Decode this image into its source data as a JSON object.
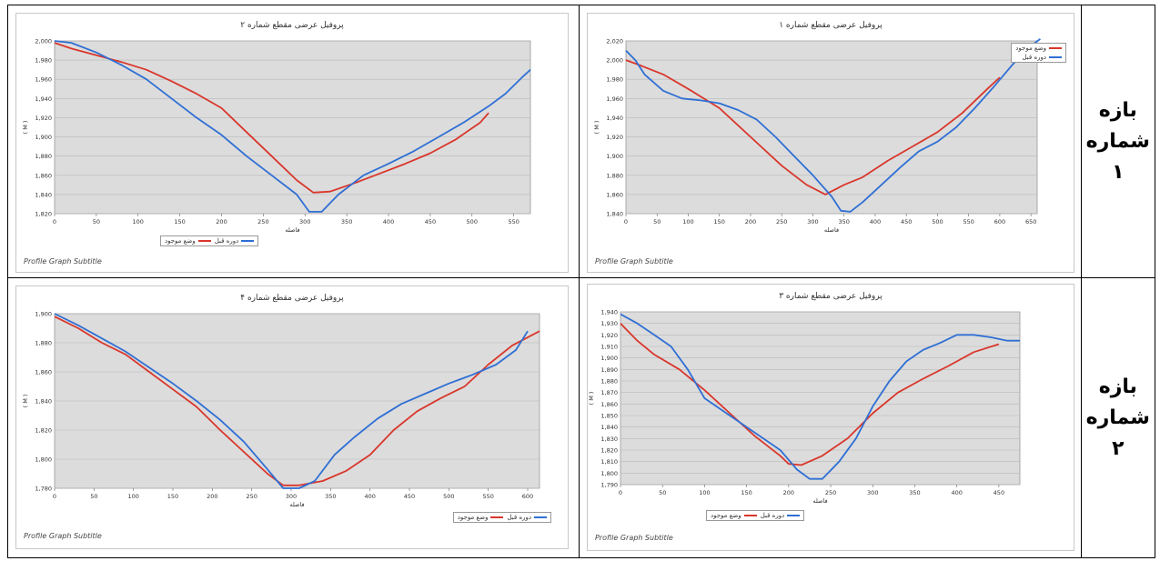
{
  "row_labels": [
    {
      "line1": "بازه",
      "line2": "شماره",
      "line3": "۱"
    },
    {
      "line1": "بازه",
      "line2": "شماره",
      "line3": "۲"
    }
  ],
  "colors": {
    "red": "#d9362b",
    "blue": "#2f6fd4",
    "plot_bg": "#dcdcdc"
  },
  "footer_text": "Profile Graph Subtitle",
  "chart_data": [
    {
      "id": "reach1",
      "type": "line",
      "title": "پروفیل عرضی مقطع شماره ۱",
      "xlabel": "فاصله",
      "ylabel": "( M )",
      "xlim": [
        0,
        660
      ],
      "xstep": 50,
      "ylim": [
        1840,
        2020
      ],
      "ystep": 20,
      "legend_position": "top-right",
      "legend": [
        "وضع موجود",
        "دوره قبل"
      ],
      "series": [
        {
          "name": "وضع موجود",
          "color": "red",
          "points": [
            [
              0,
              2000
            ],
            [
              25,
              1994
            ],
            [
              60,
              1985
            ],
            [
              100,
              1970
            ],
            [
              150,
              1950
            ],
            [
              200,
              1920
            ],
            [
              250,
              1890
            ],
            [
              290,
              1870
            ],
            [
              320,
              1860
            ],
            [
              350,
              1870
            ],
            [
              380,
              1878
            ],
            [
              420,
              1895
            ],
            [
              460,
              1910
            ],
            [
              500,
              1925
            ],
            [
              540,
              1945
            ],
            [
              580,
              1970
            ],
            [
              600,
              1982
            ]
          ]
        },
        {
          "name": "دوره قبل",
          "color": "blue",
          "points": [
            [
              0,
              2010
            ],
            [
              15,
              2000
            ],
            [
              30,
              1985
            ],
            [
              60,
              1968
            ],
            [
              90,
              1960
            ],
            [
              120,
              1958
            ],
            [
              150,
              1955
            ],
            [
              180,
              1948
            ],
            [
              210,
              1938
            ],
            [
              240,
              1920
            ],
            [
              270,
              1900
            ],
            [
              300,
              1880
            ],
            [
              330,
              1858
            ],
            [
              345,
              1843
            ],
            [
              360,
              1842
            ],
            [
              380,
              1852
            ],
            [
              410,
              1870
            ],
            [
              440,
              1888
            ],
            [
              470,
              1905
            ],
            [
              500,
              1915
            ],
            [
              530,
              1930
            ],
            [
              560,
              1950
            ],
            [
              590,
              1972
            ],
            [
              620,
              1995
            ],
            [
              650,
              2015
            ],
            [
              665,
              2022
            ]
          ]
        }
      ]
    },
    {
      "id": "reach1_prev",
      "type": "line",
      "title": "پروفیل عرضی مقطع شماره ۲",
      "xlabel": "فاصله",
      "ylabel": "( M )",
      "xlim": [
        0,
        570
      ],
      "xstep": 50,
      "ylim": [
        1820,
        2000
      ],
      "ystep": 20,
      "legend_position": "bottom",
      "legend": [
        "دوره قبل",
        "وضع موجود"
      ],
      "series": [
        {
          "name": "وضع موجود",
          "color": "red",
          "points": [
            [
              0,
              1998
            ],
            [
              20,
              1992
            ],
            [
              50,
              1985
            ],
            [
              80,
              1978
            ],
            [
              110,
              1970
            ],
            [
              140,
              1958
            ],
            [
              170,
              1945
            ],
            [
              200,
              1930
            ],
            [
              230,
              1905
            ],
            [
              260,
              1880
            ],
            [
              290,
              1855
            ],
            [
              310,
              1842
            ],
            [
              330,
              1843
            ],
            [
              360,
              1852
            ],
            [
              390,
              1862
            ],
            [
              420,
              1872
            ],
            [
              450,
              1883
            ],
            [
              480,
              1897
            ],
            [
              510,
              1915
            ],
            [
              520,
              1925
            ]
          ]
        },
        {
          "name": "دوره قبل",
          "color": "blue",
          "points": [
            [
              0,
              2000
            ],
            [
              20,
              1998
            ],
            [
              50,
              1988
            ],
            [
              80,
              1975
            ],
            [
              110,
              1960
            ],
            [
              140,
              1940
            ],
            [
              170,
              1920
            ],
            [
              200,
              1902
            ],
            [
              230,
              1880
            ],
            [
              260,
              1860
            ],
            [
              290,
              1840
            ],
            [
              305,
              1822
            ],
            [
              320,
              1822
            ],
            [
              340,
              1840
            ],
            [
              370,
              1860
            ],
            [
              400,
              1872
            ],
            [
              430,
              1885
            ],
            [
              460,
              1900
            ],
            [
              490,
              1915
            ],
            [
              520,
              1932
            ],
            [
              540,
              1945
            ],
            [
              560,
              1962
            ],
            [
              570,
              1970
            ]
          ]
        }
      ]
    },
    {
      "id": "reach2",
      "type": "line",
      "title": "پروفیل عرضی مقطع شماره ۳",
      "xlabel": "فاصله",
      "ylabel": "( M )",
      "xlim": [
        0,
        475
      ],
      "xstep": 50,
      "ylim": [
        1790,
        1940
      ],
      "ystep": 10,
      "legend_position": "bottom",
      "legend": [
        "دوره قبل",
        "وضع موجود"
      ],
      "series": [
        {
          "name": "وضع موجود",
          "color": "red",
          "points": [
            [
              0,
              1930
            ],
            [
              20,
              1915
            ],
            [
              40,
              1903
            ],
            [
              70,
              1890
            ],
            [
              100,
              1872
            ],
            [
              130,
              1852
            ],
            [
              160,
              1832
            ],
            [
              190,
              1815
            ],
            [
              200,
              1808
            ],
            [
              215,
              1807
            ],
            [
              240,
              1815
            ],
            [
              270,
              1830
            ],
            [
              300,
              1852
            ],
            [
              330,
              1870
            ],
            [
              360,
              1882
            ],
            [
              390,
              1893
            ],
            [
              420,
              1905
            ],
            [
              450,
              1912
            ]
          ]
        },
        {
          "name": "دوره قبل",
          "color": "blue",
          "points": [
            [
              0,
              1938
            ],
            [
              20,
              1930
            ],
            [
              40,
              1920
            ],
            [
              60,
              1910
            ],
            [
              80,
              1890
            ],
            [
              100,
              1865
            ],
            [
              130,
              1850
            ],
            [
              160,
              1835
            ],
            [
              190,
              1820
            ],
            [
              210,
              1803
            ],
            [
              225,
              1795
            ],
            [
              240,
              1795
            ],
            [
              260,
              1810
            ],
            [
              280,
              1830
            ],
            [
              300,
              1858
            ],
            [
              320,
              1880
            ],
            [
              340,
              1897
            ],
            [
              360,
              1907
            ],
            [
              380,
              1913
            ],
            [
              400,
              1920
            ],
            [
              420,
              1920
            ],
            [
              440,
              1918
            ],
            [
              460,
              1915
            ],
            [
              475,
              1915
            ]
          ]
        }
      ]
    },
    {
      "id": "reach2_prev",
      "type": "line",
      "title": "پروفیل عرضی مقطع شماره ۴",
      "xlabel": "فاصله",
      "ylabel": "( M )",
      "xlim": [
        0,
        615
      ],
      "xstep": 50,
      "ylim": [
        1780,
        1900
      ],
      "ystep": 20,
      "legend_position": "bottom-right",
      "legend": [
        "دوره قبل",
        "وضع موجود"
      ],
      "series": [
        {
          "name": "وضع موجود",
          "color": "red",
          "points": [
            [
              0,
              1898
            ],
            [
              30,
              1890
            ],
            [
              60,
              1880
            ],
            [
              90,
              1872
            ],
            [
              120,
              1860
            ],
            [
              150,
              1848
            ],
            [
              180,
              1836
            ],
            [
              210,
              1820
            ],
            [
              240,
              1805
            ],
            [
              270,
              1790
            ],
            [
              290,
              1782
            ],
            [
              310,
              1782
            ],
            [
              340,
              1785
            ],
            [
              370,
              1792
            ],
            [
              400,
              1803
            ],
            [
              430,
              1820
            ],
            [
              460,
              1833
            ],
            [
              490,
              1842
            ],
            [
              520,
              1850
            ],
            [
              550,
              1865
            ],
            [
              580,
              1878
            ],
            [
              615,
              1888
            ]
          ]
        },
        {
          "name": "دوره قبل",
          "color": "blue",
          "points": [
            [
              0,
              1900
            ],
            [
              30,
              1892
            ],
            [
              60,
              1883
            ],
            [
              90,
              1874
            ],
            [
              120,
              1863
            ],
            [
              150,
              1852
            ],
            [
              180,
              1840
            ],
            [
              210,
              1827
            ],
            [
              240,
              1812
            ],
            [
              270,
              1793
            ],
            [
              290,
              1780
            ],
            [
              310,
              1780
            ],
            [
              330,
              1785
            ],
            [
              355,
              1803
            ],
            [
              380,
              1815
            ],
            [
              410,
              1828
            ],
            [
              440,
              1838
            ],
            [
              470,
              1845
            ],
            [
              500,
              1852
            ],
            [
              530,
              1858
            ],
            [
              560,
              1865
            ],
            [
              585,
              1875
            ],
            [
              600,
              1888
            ]
          ]
        }
      ]
    }
  ]
}
